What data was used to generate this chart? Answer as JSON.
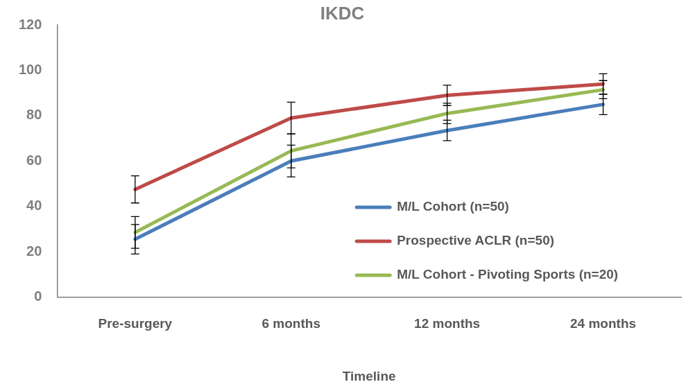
{
  "chart_data": {
    "type": "line",
    "title": "IKDC",
    "xlabel": "Timeline",
    "categories": [
      "Pre-surgery",
      "6 months",
      "12 months",
      "24 months"
    ],
    "series": [
      {
        "name": "M/L Cohort (n=50)",
        "color": "#4a7ebb",
        "values": [
          25.5,
          60,
          73.5,
          85
        ],
        "errors": [
          6.5,
          7,
          4.5,
          4.5
        ]
      },
      {
        "name": "Prospective ACLR (n=50)",
        "color": "#be4b48",
        "values": [
          47.5,
          79,
          89,
          94
        ],
        "errors": [
          6,
          7,
          4.5,
          4.5
        ]
      },
      {
        "name": "M/L Cohort - Pivoting Sports (n=20)",
        "color": "#98b954",
        "values": [
          28.5,
          64.5,
          81,
          91.5
        ],
        "errors": [
          7,
          7.5,
          4.5,
          4
        ]
      }
    ],
    "ylim": [
      0,
      120
    ],
    "yticks": [
      0,
      20,
      40,
      60,
      80,
      100,
      120
    ],
    "grid": false,
    "legend": "right",
    "marker": "none",
    "line_style": "solid"
  }
}
